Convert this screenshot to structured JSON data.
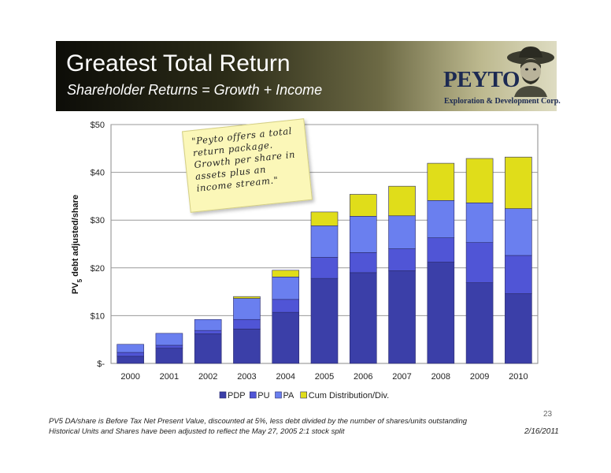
{
  "header": {
    "title": "Greatest Total Return",
    "subtitle": "Shareholder Returns = Growth + Income"
  },
  "logo": {
    "name": "PEYTO",
    "subtitle": "Exploration & Development Corp."
  },
  "note": {
    "text": "\"Peyto offers a total return package. Growth per share in assets plus an income stream.\""
  },
  "footer": {
    "line1": "PV5 DA/share is Before Tax Net Present Value, discounted at 5%, less debt divided by the number of shares/units outstanding",
    "line2": "Historical Units and Shares have been adjusted to reflect the May 27, 2005 2:1 stock split",
    "page_number": "23",
    "date": "2/16/2011"
  },
  "colors": {
    "PDP": "#3b3fa8",
    "PU": "#5055d6",
    "PA": "#6a7fef",
    "CumDist": "#e0dd1a",
    "banner_dark": "#0d0d08"
  },
  "chart_data": {
    "type": "bar",
    "stacked": true,
    "categories": [
      "2000",
      "2001",
      "2002",
      "2003",
      "2004",
      "2005",
      "2006",
      "2007",
      "2008",
      "2009",
      "2010"
    ],
    "series": [
      {
        "name": "PDP",
        "values": [
          1.5,
          3.2,
          6.2,
          7.2,
          10.7,
          17.8,
          19.0,
          19.4,
          21.2,
          16.9,
          14.6
        ]
      },
      {
        "name": "PU",
        "values": [
          0.8,
          0.6,
          0.7,
          2.0,
          2.7,
          4.4,
          4.2,
          4.6,
          5.1,
          8.4,
          8.0
        ]
      },
      {
        "name": "PA",
        "values": [
          1.7,
          2.5,
          2.3,
          4.4,
          4.7,
          6.6,
          7.6,
          6.9,
          7.8,
          8.3,
          9.8
        ]
      },
      {
        "name": "Cum Distribution/Div.",
        "values": [
          0,
          0,
          0,
          0.4,
          1.4,
          2.9,
          4.6,
          6.2,
          7.8,
          9.3,
          10.8
        ]
      }
    ],
    "ylabel_main": "PV",
    "ylabel_sub": "5",
    "ylabel_rest": " debt adjusted/share",
    "ylim": [
      0,
      50
    ],
    "yticks": [
      {
        "value": 0,
        "label": "$-"
      },
      {
        "value": 10,
        "label": "$10"
      },
      {
        "value": 20,
        "label": "$20"
      },
      {
        "value": 30,
        "label": "$30"
      },
      {
        "value": 40,
        "label": "$40"
      },
      {
        "value": 50,
        "label": "$50"
      }
    ],
    "grid": true,
    "legend": "bottom"
  }
}
